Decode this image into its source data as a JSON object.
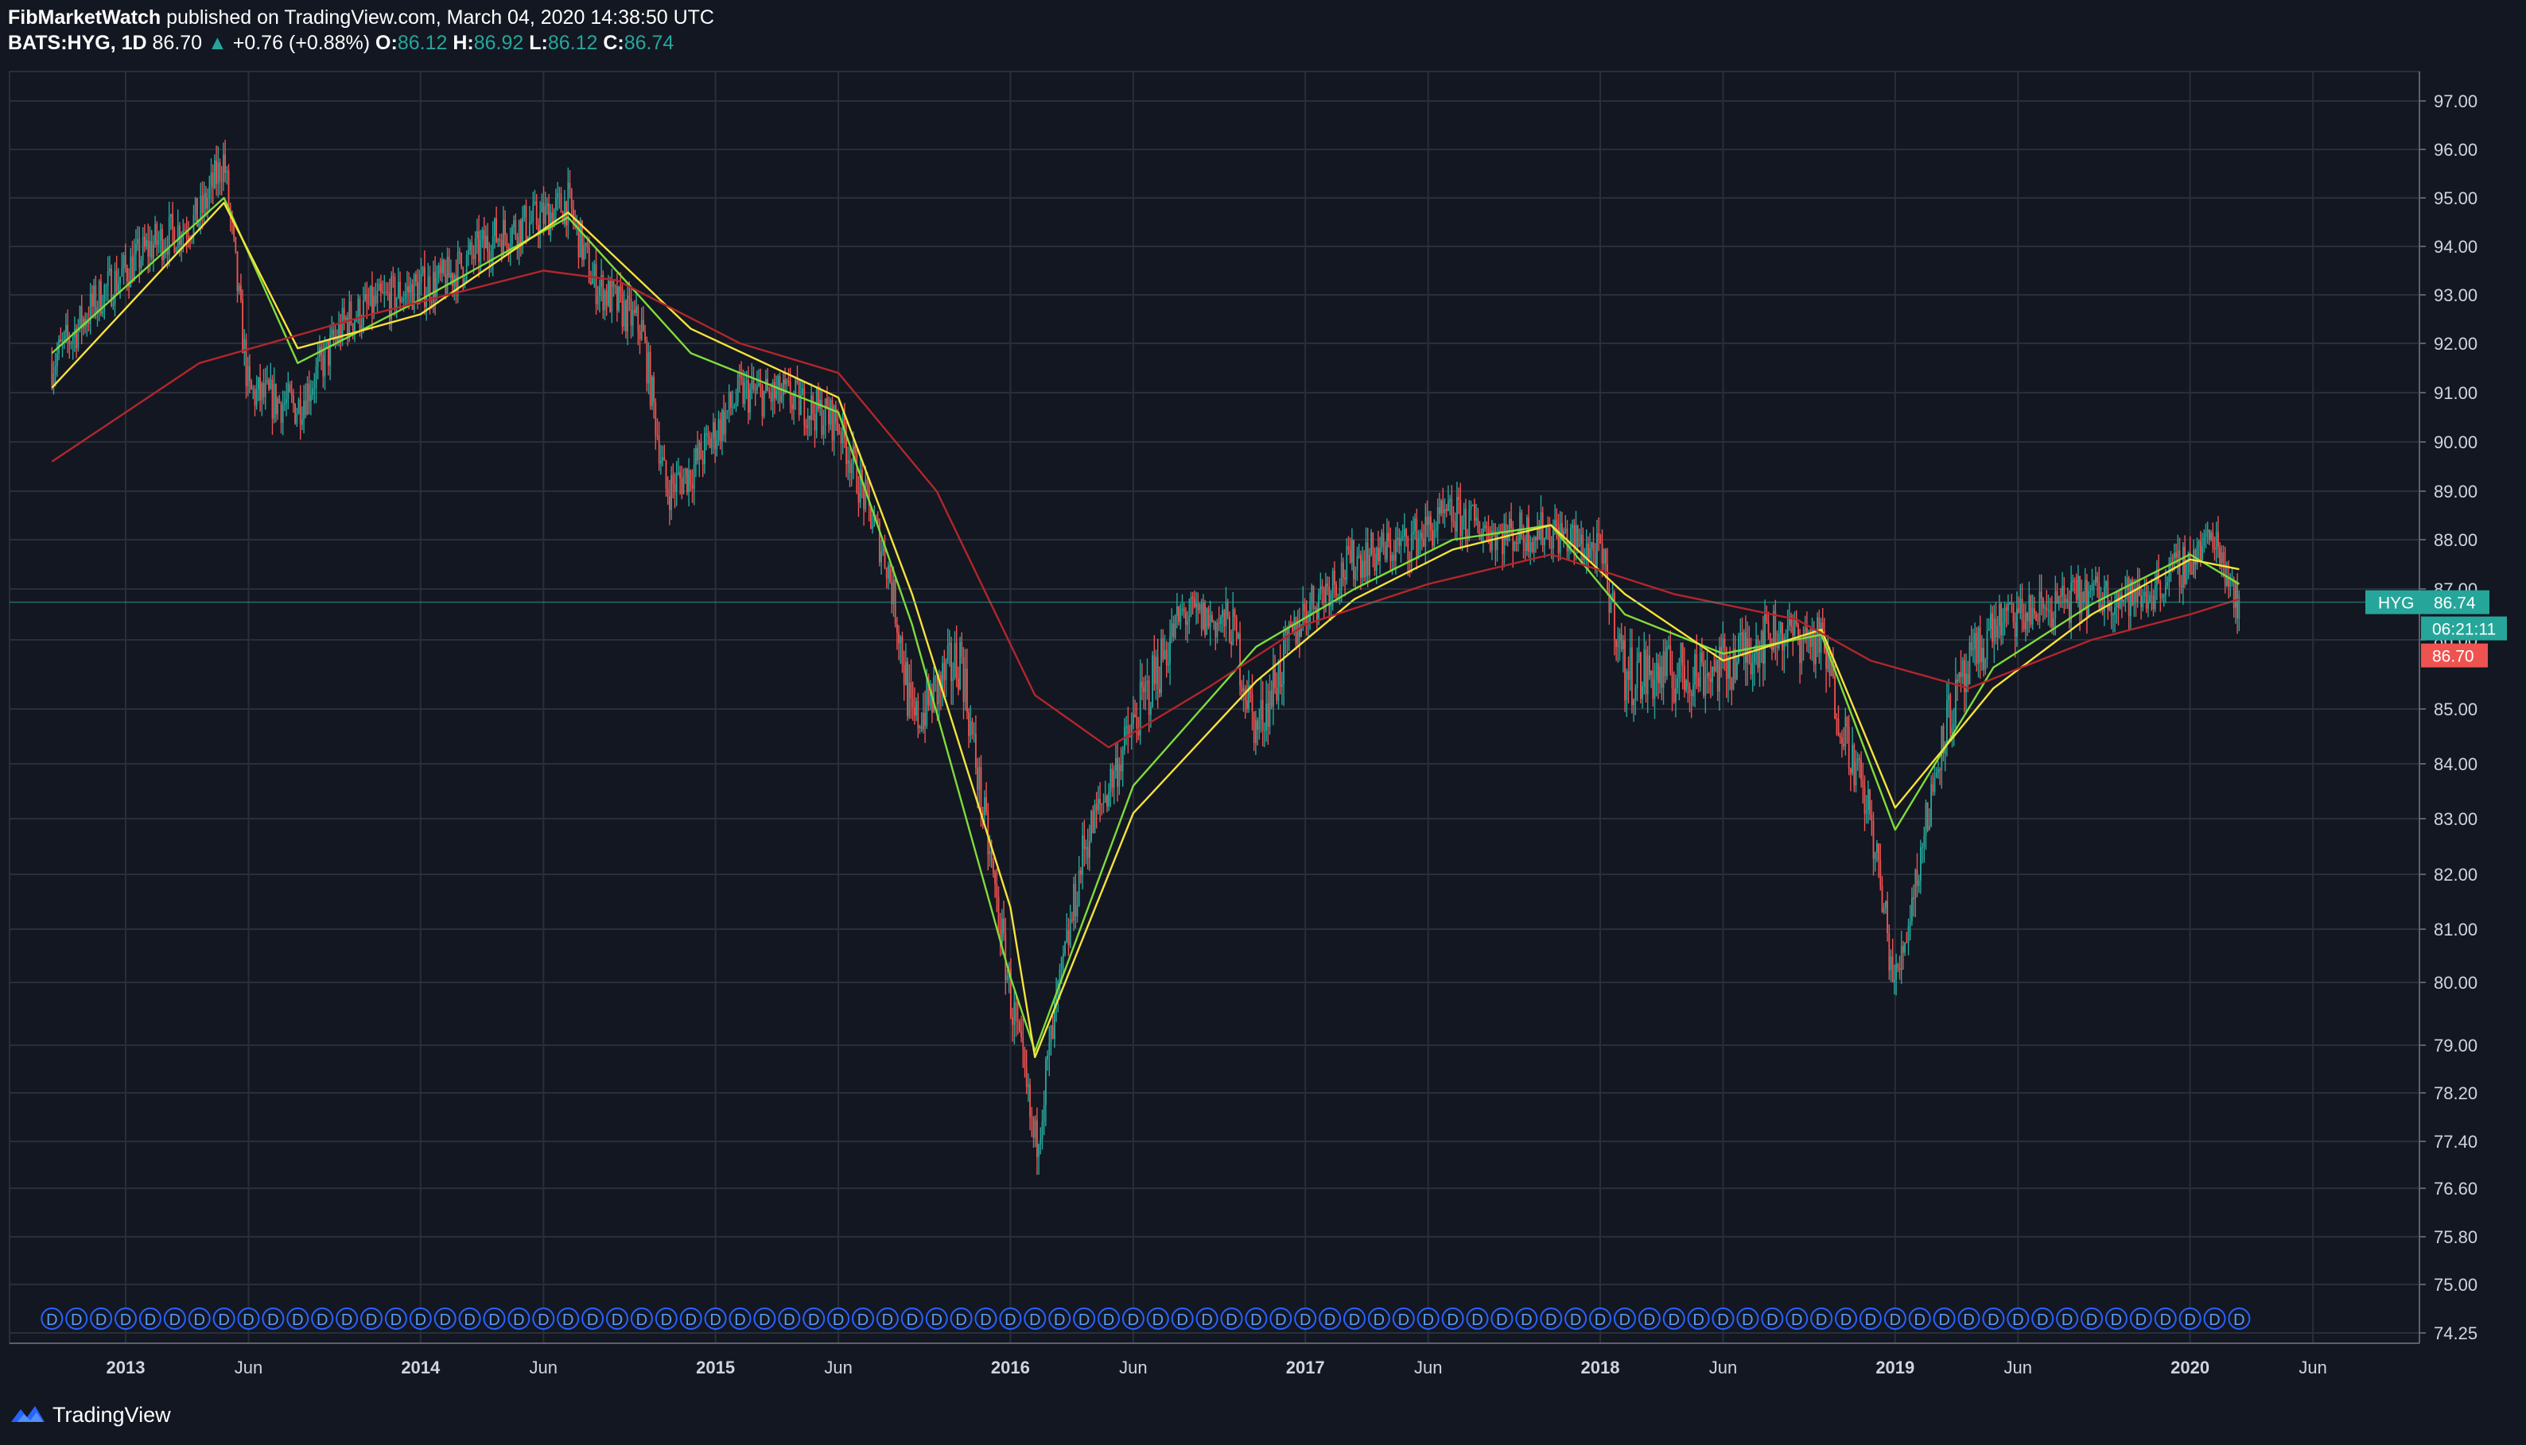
{
  "header": {
    "author": "FibMarketWatch",
    "published": "published on TradingView.com, March 04, 2020 14:38:50 UTC",
    "symbol": "BATS:HYG, 1D",
    "last": "86.70",
    "arrow": "▲",
    "change": "+0.76 (+0.88%)",
    "o_label": "O:",
    "o_value": "86.12",
    "h_label": "H:",
    "h_value": "86.92",
    "l_label": "L:",
    "l_value": "86.12",
    "c_label": "C:",
    "c_value": "86.74"
  },
  "price_labels": {
    "symbol_tag": "HYG",
    "symbol_price": "86.74",
    "countdown": "06:21:11",
    "last_price": "86.70"
  },
  "footer": {
    "brand": "TradingView",
    "icon": "tradingview-logo-icon"
  },
  "colors": {
    "background": "#131722",
    "grid": "#2a2e39",
    "up": "#26a69a",
    "down": "#ef5350",
    "ma_fast": "#7fdc3a",
    "ma_mid": "#f5e33b",
    "ma_slow": "#b2262b",
    "dividend": "#2962ff"
  },
  "chart_data": {
    "type": "line",
    "title": "",
    "series_kind": "candlestick with moving averages",
    "ylim": [
      74.25,
      97.0
    ],
    "y_ticks": [
      "97.00",
      "96.00",
      "95.00",
      "94.00",
      "93.00",
      "92.00",
      "91.00",
      "90.00",
      "89.00",
      "88.00",
      "87.00",
      "86.00",
      "85.00",
      "84.00",
      "83.00",
      "82.00",
      "81.00",
      "80.00",
      "79.00",
      "78.20",
      "77.40",
      "76.60",
      "75.80",
      "75.00",
      "74.25"
    ],
    "x_ticks": [
      "2013",
      "Jun",
      "2014",
      "Jun",
      "2015",
      "Jun",
      "2016",
      "Jun",
      "2017",
      "Jun",
      "2018",
      "Jun",
      "2019",
      "Jun",
      "2020",
      "Jun"
    ],
    "x_tick_dates": [
      "2013-01",
      "2013-06",
      "2014-01",
      "2014-06",
      "2015-01",
      "2015-06",
      "2016-01",
      "2016-06",
      "2017-01",
      "2017-06",
      "2018-01",
      "2018-06",
      "2019-01",
      "2019-06",
      "2020-01",
      "2020-06"
    ],
    "series": [
      {
        "kind": "close",
        "x": [
          "2012-10",
          "2012-12",
          "2013-02",
          "2013-04",
          "2013-05",
          "2013-06",
          "2013-08",
          "2013-10",
          "2013-12",
          "2014-02",
          "2014-04",
          "2014-06",
          "2014-07",
          "2014-08",
          "2014-10",
          "2014-11",
          "2014-12",
          "2015-02",
          "2015-04",
          "2015-06",
          "2015-08",
          "2015-09",
          "2015-11",
          "2015-12",
          "2016-01",
          "2016-02",
          "2016-04",
          "2016-06",
          "2016-08",
          "2016-10",
          "2016-11",
          "2017-01",
          "2017-03",
          "2017-05",
          "2017-07",
          "2017-09",
          "2017-11",
          "2018-01",
          "2018-02",
          "2018-04",
          "2018-06",
          "2018-08",
          "2018-10",
          "2018-12",
          "2019-01",
          "2019-03",
          "2019-05",
          "2019-07",
          "2019-09",
          "2019-11",
          "2020-01",
          "2020-02",
          "2020-03"
        ],
        "values": [
          91.6,
          93.0,
          94.0,
          94.6,
          95.8,
          91.0,
          90.7,
          92.5,
          93.0,
          93.3,
          94.2,
          94.6,
          94.9,
          93.3,
          92.3,
          89.0,
          89.4,
          91.0,
          90.9,
          90.4,
          87.5,
          84.7,
          85.8,
          82.8,
          79.8,
          77.3,
          82.5,
          84.7,
          86.5,
          86.3,
          84.6,
          86.6,
          87.6,
          87.9,
          88.5,
          88.1,
          88.2,
          87.7,
          85.5,
          85.5,
          85.6,
          86.2,
          86.0,
          83.0,
          79.9,
          84.7,
          86.3,
          86.6,
          86.9,
          86.8,
          87.6,
          88.1,
          86.7
        ]
      },
      {
        "kind": "moving-average-fast",
        "x": [
          "2012-10",
          "2013-05",
          "2013-08",
          "2014-01",
          "2014-07",
          "2014-12",
          "2015-06",
          "2015-09",
          "2016-01",
          "2016-02",
          "2016-06",
          "2016-11",
          "2017-03",
          "2017-07",
          "2017-11",
          "2018-02",
          "2018-06",
          "2018-10",
          "2019-01",
          "2019-05",
          "2019-09",
          "2020-01",
          "2020-03"
        ],
        "values": [
          91.8,
          95.0,
          91.6,
          92.9,
          94.6,
          91.8,
          90.6,
          86.3,
          80.1,
          78.9,
          83.6,
          85.9,
          87.0,
          88.0,
          88.3,
          86.5,
          85.8,
          86.1,
          82.8,
          85.6,
          86.7,
          87.7,
          87.1
        ]
      },
      {
        "kind": "moving-average-mid",
        "x": [
          "2012-10",
          "2013-05",
          "2013-08",
          "2014-01",
          "2014-07",
          "2014-12",
          "2015-06",
          "2015-09",
          "2016-01",
          "2016-02",
          "2016-06",
          "2016-11",
          "2017-03",
          "2017-07",
          "2017-11",
          "2018-02",
          "2018-06",
          "2018-10",
          "2019-01",
          "2019-05",
          "2019-09",
          "2020-01",
          "2020-03"
        ],
        "values": [
          91.1,
          94.9,
          91.9,
          92.6,
          94.7,
          92.3,
          90.9,
          86.9,
          81.4,
          78.8,
          83.1,
          85.4,
          86.8,
          87.8,
          88.3,
          86.9,
          85.7,
          86.2,
          83.2,
          85.3,
          86.5,
          87.6,
          87.4
        ]
      },
      {
        "kind": "moving-average-slow",
        "x": [
          "2012-10",
          "2013-04",
          "2013-11",
          "2014-06",
          "2014-09",
          "2015-02",
          "2015-06",
          "2015-10",
          "2016-02",
          "2016-05",
          "2016-09",
          "2017-01",
          "2017-06",
          "2017-11",
          "2018-04",
          "2018-09",
          "2018-12",
          "2019-04",
          "2019-09",
          "2020-01",
          "2020-03"
        ],
        "values": [
          89.6,
          91.6,
          92.6,
          93.5,
          93.3,
          92.0,
          91.4,
          89.0,
          85.2,
          84.3,
          85.3,
          86.3,
          87.1,
          87.7,
          86.9,
          86.4,
          85.7,
          85.3,
          86.0,
          86.5,
          86.8
        ]
      }
    ]
  }
}
